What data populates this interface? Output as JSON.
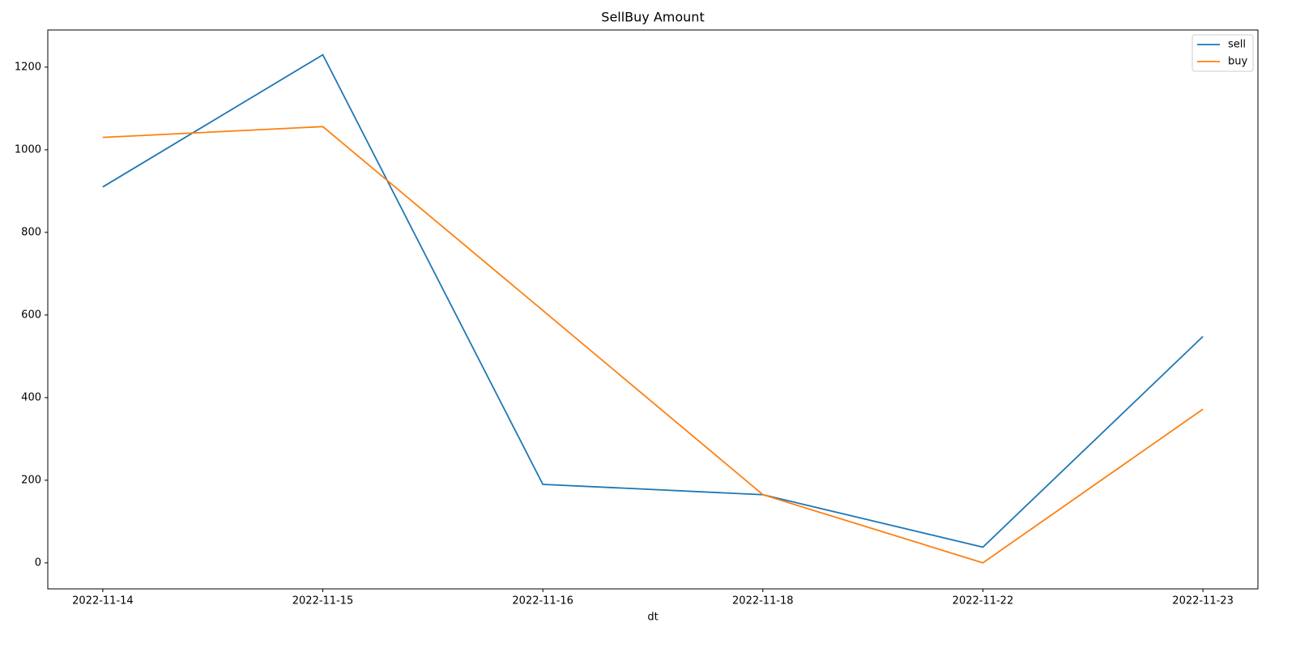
{
  "chart_data": {
    "type": "line",
    "title": "SellBuy Amount",
    "x_label": "dt",
    "categories": [
      "2022-11-14",
      "2022-11-15",
      "2022-11-16",
      "2022-11-18",
      "2022-11-22",
      "2022-11-23"
    ],
    "series": [
      {
        "name": "sell",
        "color": "#1f77b4",
        "values": [
          910,
          1230,
          190,
          165,
          38,
          548
        ]
      },
      {
        "name": "buy",
        "color": "#ff7f0e",
        "values": [
          1030,
          1056,
          611,
          165,
          0,
          372
        ]
      }
    ],
    "ylim": [
      -63,
      1290
    ],
    "yticks": [
      0,
      200,
      400,
      600,
      800,
      1000,
      1200
    ],
    "grid": false,
    "legend": "upper right"
  }
}
